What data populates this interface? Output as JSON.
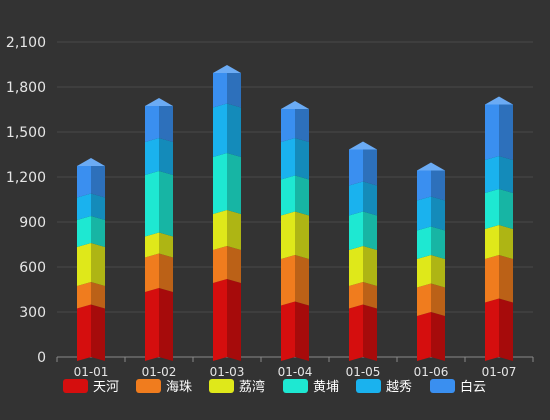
{
  "chart_data": {
    "type": "bar",
    "stacked": true,
    "style": "3d-prism",
    "categories": [
      "01-01",
      "01-02",
      "01-03",
      "01-04",
      "01-05",
      "01-06",
      "01-07"
    ],
    "ylim": [
      0,
      2100
    ],
    "yticks": [
      0,
      300,
      600,
      900,
      1200,
      1500,
      1800,
      2100
    ],
    "ytick_labels": [
      "0",
      "300",
      "600",
      "900",
      "1,200",
      "1,500",
      "1,800",
      "2,100"
    ],
    "grid": true,
    "legend_position": "bottom",
    "series": [
      {
        "name": "天河",
        "color": "#d50e0e",
        "values": [
          350,
          460,
          520,
          370,
          350,
          300,
          390
        ]
      },
      {
        "name": "海珠",
        "color": "#f07c1e",
        "values": [
          150,
          230,
          220,
          310,
          150,
          190,
          290
        ]
      },
      {
        "name": "荔湾",
        "color": "#dfe81a",
        "values": [
          260,
          140,
          240,
          290,
          240,
          190,
          200
        ]
      },
      {
        "name": "黄埔",
        "color": "#1ee8d2",
        "values": [
          180,
          410,
          380,
          240,
          230,
          190,
          240
        ]
      },
      {
        "name": "越秀",
        "color": "#1ab2ee",
        "values": [
          150,
          220,
          330,
          250,
          200,
          200,
          220
        ]
      },
      {
        "name": "白云",
        "color": "#3a8ff0",
        "values": [
          210,
          240,
          230,
          220,
          240,
          200,
          370
        ]
      }
    ]
  }
}
